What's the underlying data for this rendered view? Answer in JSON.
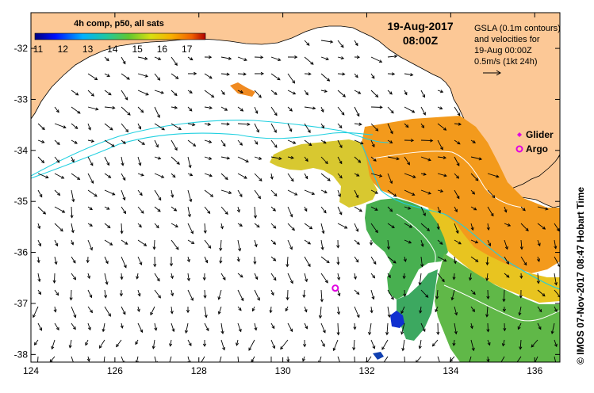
{
  "colorbar": {
    "title": "4h comp, p50, all sats",
    "labels": [
      "11",
      "12",
      "13",
      "14",
      "15",
      "16",
      "17"
    ]
  },
  "header": {
    "date": "19-Aug-2017",
    "time": "08:00Z"
  },
  "gsla_note": {
    "line1": "GSLA (0.1m contours)",
    "line2": "and velocities for",
    "line3": "19-Aug 00:00Z",
    "line4": "0.5m/s (1kt 24h)"
  },
  "legend": {
    "glider_label": "Glider",
    "argo_label": "Argo",
    "glider_color": "#e000e0",
    "argo_color": "#e000e0"
  },
  "credit": "© IMOS 07-Nov-2017 08:47 Hobart Time",
  "axes": {
    "x_ticks": [
      "124",
      "126",
      "128",
      "130",
      "132",
      "134",
      "136"
    ],
    "y_ticks": [
      "-32",
      "-33",
      "-34",
      "-35",
      "-36",
      "-37",
      "-38"
    ]
  },
  "map_data": {
    "lon_range": [
      124,
      136.6
    ],
    "lat_range": [
      -38.15,
      -31.3
    ],
    "land_color": "#fcc896",
    "sst_range": [
      11,
      17
    ],
    "argo_float": {
      "lon": 131.25,
      "lat": -36.7
    }
  }
}
